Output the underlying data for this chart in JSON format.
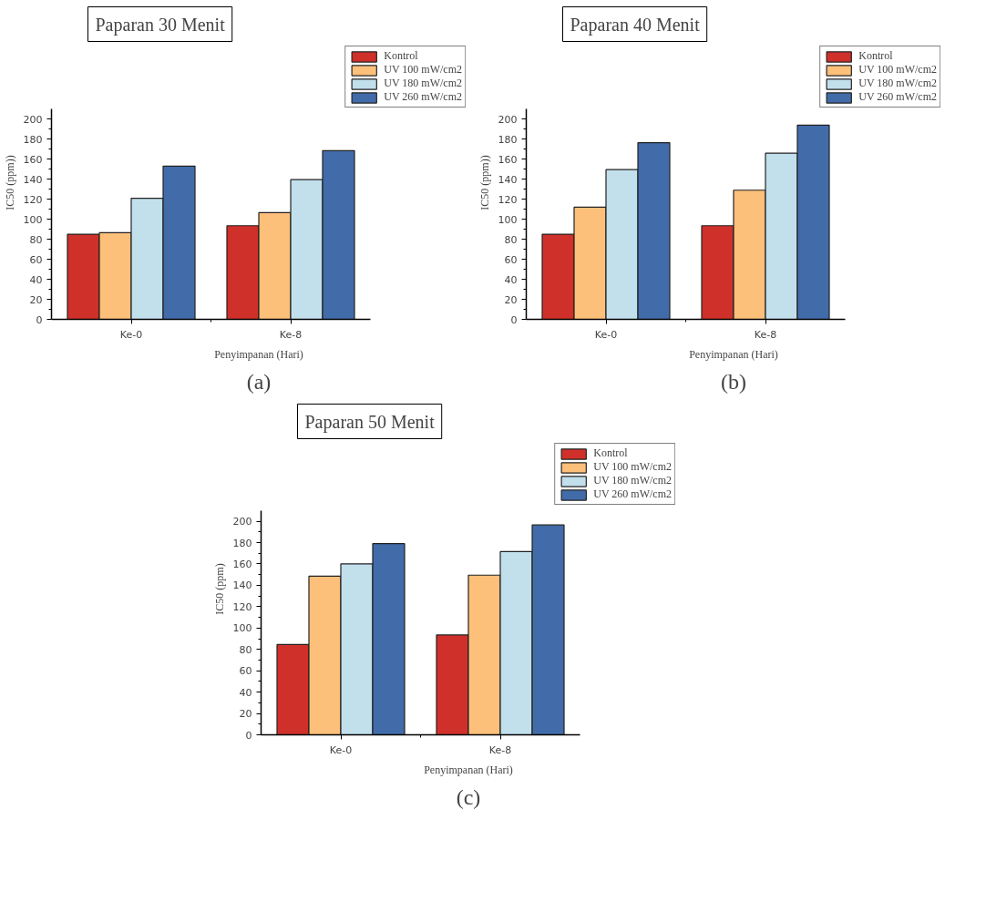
{
  "chart_data": [
    {
      "type": "bar",
      "title": "Paparan 30 Menit",
      "xlabel": "Penyimpanan (Hari)",
      "ylabel": "IC50 (ppm))",
      "annotations": [
        "(a)"
      ],
      "categories": [
        "Ke-0",
        "Ke-8"
      ],
      "series": [
        {
          "name": "Kontrol",
          "color": "#d0302a",
          "values": [
            85,
            93.5
          ]
        },
        {
          "name": "UV 100 mW/cm2",
          "color": "#fdc07a",
          "values": [
            86.5,
            106.5
          ]
        },
        {
          "name": "UV 180 mW/cm2",
          "color": "#c2dfec",
          "values": [
            121,
            139.5
          ]
        },
        {
          "name": "UV 260 mW/cm2",
          "color": "#416ca9",
          "values": [
            153,
            168.5
          ]
        }
      ],
      "ylim": [
        0,
        210
      ],
      "yticks": [
        0,
        20,
        40,
        60,
        80,
        100,
        120,
        140,
        160,
        180,
        200
      ],
      "grid": false,
      "legend": "top right"
    },
    {
      "type": "bar",
      "title": "Paparan 40 Menit",
      "xlabel": "Penyimpanan (Hari)",
      "ylabel": "IC50 (ppm))",
      "annotations": [
        "(b)"
      ],
      "categories": [
        "Ke-0",
        "Ke-8"
      ],
      "series": [
        {
          "name": "Kontrol",
          "color": "#d0302a",
          "values": [
            85,
            93.5
          ]
        },
        {
          "name": "UV 100 mW/cm2",
          "color": "#fdc07a",
          "values": [
            112,
            129
          ]
        },
        {
          "name": "UV 180 mW/cm2",
          "color": "#c2dfec",
          "values": [
            149.5,
            166
          ]
        },
        {
          "name": "UV 260 mW/cm2",
          "color": "#416ca9",
          "values": [
            176.5,
            194
          ]
        }
      ],
      "ylim": [
        0,
        210
      ],
      "yticks": [
        0,
        20,
        40,
        60,
        80,
        100,
        120,
        140,
        160,
        180,
        200
      ],
      "grid": false,
      "legend": "top right"
    },
    {
      "type": "bar",
      "title": "Paparan 50 Menit",
      "xlabel": "Penyimpanan (Hari)",
      "ylabel": "IC50 (ppm)",
      "annotations": [
        "(c)"
      ],
      "categories": [
        "Ke-0",
        "Ke-8"
      ],
      "series": [
        {
          "name": "Kontrol",
          "color": "#d0302a",
          "values": [
            84.5,
            93.5
          ]
        },
        {
          "name": "UV 100 mW/cm2",
          "color": "#fdc07a",
          "values": [
            148.5,
            149.5
          ]
        },
        {
          "name": "UV 180 mW/cm2",
          "color": "#c2dfec",
          "values": [
            160,
            171.5
          ]
        },
        {
          "name": "UV 260 mW/cm2",
          "color": "#416ca9",
          "values": [
            179,
            196.5
          ]
        }
      ],
      "ylim": [
        0,
        210
      ],
      "yticks": [
        0,
        20,
        40,
        60,
        80,
        100,
        120,
        140,
        160,
        180,
        200
      ],
      "grid": false,
      "legend": "top right"
    }
  ]
}
